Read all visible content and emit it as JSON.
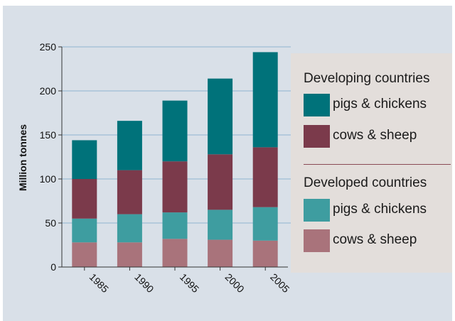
{
  "chart_data": {
    "type": "bar",
    "stacked": true,
    "ylabel": "Million tonnes",
    "ylim": [
      0,
      250
    ],
    "yticks": [
      0,
      50,
      100,
      150,
      200,
      250
    ],
    "categories": [
      "1985",
      "1990",
      "1995",
      "2000",
      "2005"
    ],
    "grid": true,
    "legend_position": "right",
    "series": [
      {
        "group": "Developed countries",
        "name": "cows & sheep",
        "color": "#a9737b",
        "values": [
          28,
          28,
          32,
          31,
          30
        ]
      },
      {
        "group": "Developed countries",
        "name": "pigs & chickens",
        "color": "#3e9da0",
        "values": [
          27,
          32,
          30,
          34,
          38
        ]
      },
      {
        "group": "Developing countries",
        "name": "cows & sheep",
        "color": "#7b3a4b",
        "values": [
          45,
          50,
          58,
          63,
          68
        ]
      },
      {
        "group": "Developing countries",
        "name": "pigs & chickens",
        "color": "#00727a",
        "values": [
          44,
          56,
          69,
          86,
          108
        ]
      }
    ]
  },
  "legend": {
    "developing_heading": "Developing countries",
    "developing_pigs": "pigs & chickens",
    "developing_cows": "cows & sheep",
    "developed_heading": "Developed countries",
    "developed_pigs": "pigs & chickens",
    "developed_cows": "cows & sheep"
  }
}
